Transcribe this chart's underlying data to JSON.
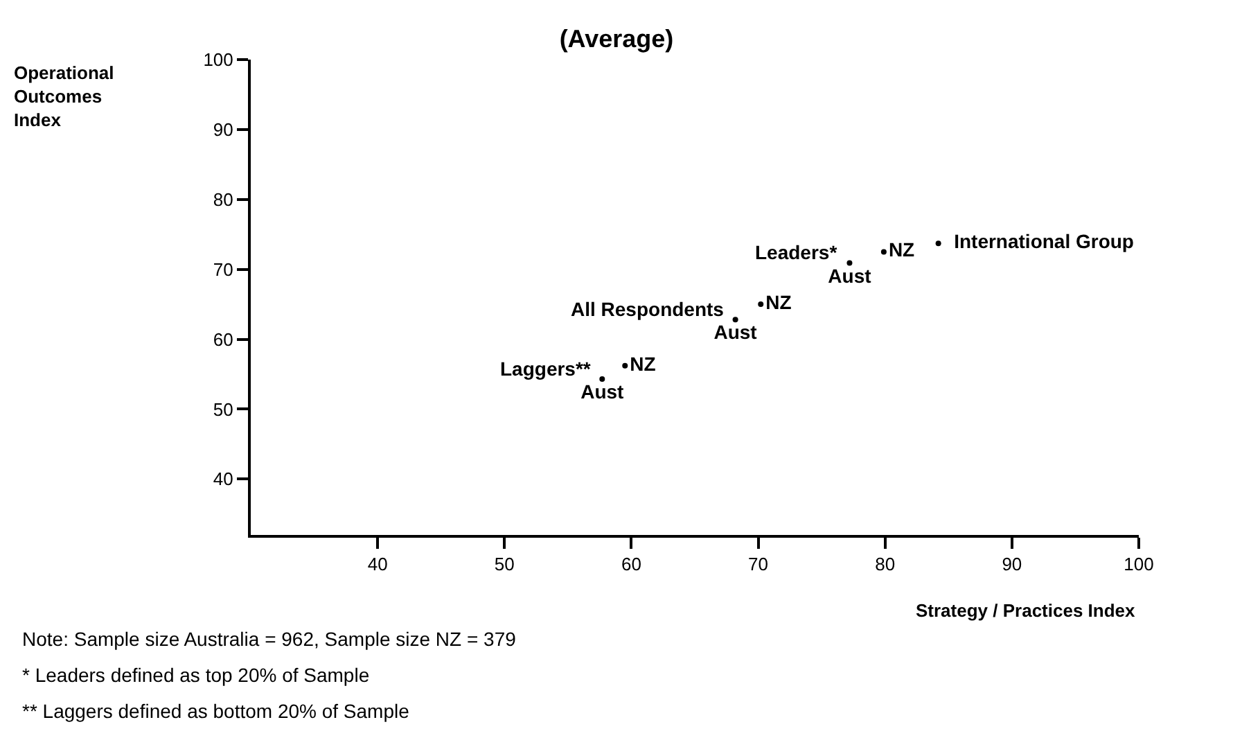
{
  "chart_data": {
    "type": "scatter",
    "title": "(Average)",
    "xlabel": "Strategy / Practices Index",
    "ylabel": "Operational Outcomes Index",
    "xlim": [
      30,
      100
    ],
    "ylim": [
      32,
      100
    ],
    "xticks": [
      40,
      50,
      60,
      70,
      80,
      90,
      100
    ],
    "yticks": [
      40,
      50,
      60,
      70,
      80,
      90,
      100
    ],
    "legend": false,
    "marker": "circle",
    "series": [
      {
        "name": "Aust",
        "color": "#000000",
        "x": [
          57.7,
          68.2,
          77.2
        ],
        "values": [
          54.3,
          62.8,
          70.9
        ]
      },
      {
        "name": "NZ",
        "color": "#000000",
        "x": [
          59.5,
          70.2,
          79.9
        ],
        "values": [
          56.2,
          65.0,
          72.5
        ]
      },
      {
        "name": "International Group",
        "color": "#000000",
        "x": [
          84.2
        ],
        "values": [
          73.7
        ]
      }
    ],
    "annotations": [
      {
        "text": "Laggers**",
        "x": 57.7,
        "y": 54.3
      },
      {
        "text": "All Respondents",
        "x": 68.2,
        "y": 62.8
      },
      {
        "text": "Leaders*",
        "x": 77.2,
        "y": 70.9
      },
      "Note: Sample size Australia = 962, Sample size NZ = 379",
      "* Leaders defined as top 20% of Sample",
      "** Laggers defined as bottom 20% of Sample"
    ]
  }
}
